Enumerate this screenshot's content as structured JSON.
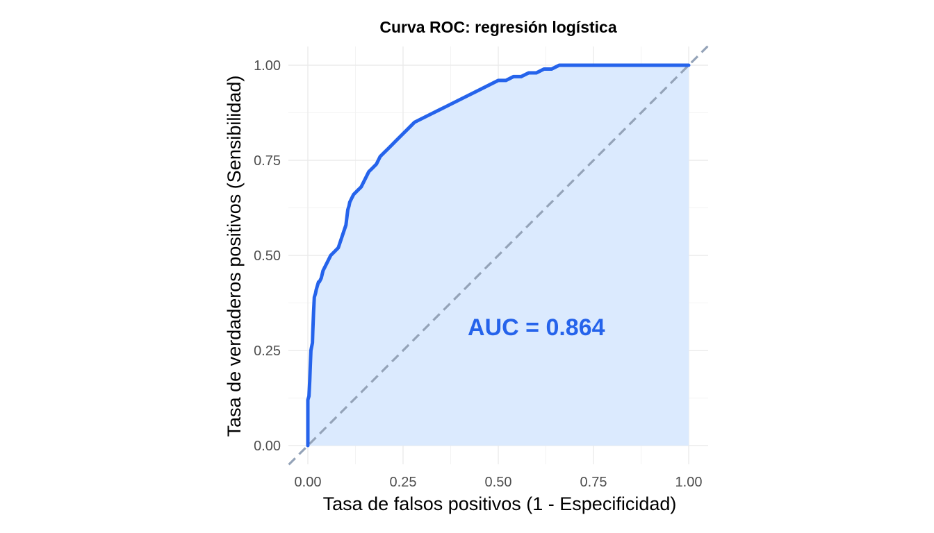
{
  "chart_data": {
    "type": "line",
    "title": "Curva ROC: regresión logística",
    "xlabel": "Tasa de falsos positivos (1 - Especificidad)",
    "ylabel": "Tasa de verdaderos positivos (Sensibilidad)",
    "xlim": [
      0,
      1
    ],
    "ylim": [
      0,
      1
    ],
    "x_ticks": [
      "0.00",
      "0.25",
      "0.50",
      "0.75",
      "1.00"
    ],
    "y_ticks": [
      "0.00",
      "0.25",
      "0.50",
      "0.75",
      "1.00"
    ],
    "grid": true,
    "legend": "none",
    "series": [
      {
        "x": [
          0.0,
          0.0,
          0.003,
          0.005,
          0.006,
          0.008,
          0.01,
          0.012,
          0.013,
          0.015,
          0.017,
          0.02,
          0.022,
          0.025,
          0.028,
          0.03,
          0.035,
          0.04,
          0.05,
          0.06,
          0.07,
          0.08,
          0.09,
          0.1,
          0.105,
          0.108,
          0.11,
          0.115,
          0.12,
          0.13,
          0.14,
          0.15,
          0.16,
          0.17,
          0.18,
          0.19,
          0.2,
          0.21,
          0.22,
          0.23,
          0.24,
          0.25,
          0.26,
          0.27,
          0.28,
          0.3,
          0.32,
          0.34,
          0.36,
          0.38,
          0.4,
          0.42,
          0.44,
          0.46,
          0.48,
          0.5,
          0.52,
          0.54,
          0.56,
          0.58,
          0.6,
          0.62,
          0.64,
          0.66,
          0.7,
          0.8,
          0.9,
          1.0
        ],
        "y": [
          0.0,
          0.12,
          0.13,
          0.17,
          0.2,
          0.25,
          0.26,
          0.27,
          0.3,
          0.35,
          0.39,
          0.4,
          0.41,
          0.42,
          0.43,
          0.43,
          0.44,
          0.46,
          0.48,
          0.5,
          0.51,
          0.52,
          0.55,
          0.58,
          0.62,
          0.63,
          0.64,
          0.65,
          0.66,
          0.67,
          0.68,
          0.7,
          0.72,
          0.73,
          0.74,
          0.76,
          0.77,
          0.78,
          0.79,
          0.8,
          0.81,
          0.82,
          0.83,
          0.84,
          0.85,
          0.86,
          0.87,
          0.88,
          0.89,
          0.9,
          0.91,
          0.92,
          0.93,
          0.94,
          0.95,
          0.96,
          0.96,
          0.97,
          0.97,
          0.98,
          0.98,
          0.99,
          0.99,
          1.0,
          1.0,
          1.0,
          1.0,
          1.0
        ],
        "color": "#2563eb",
        "fill": "#dbeafe"
      }
    ],
    "reference_line": {
      "x": [
        0,
        1
      ],
      "y": [
        0,
        1
      ],
      "style": "dashed",
      "color": "#94a3b8"
    },
    "annotations": [
      {
        "text": "AUC = 0.864",
        "x": 0.6,
        "y": 0.29,
        "color": "#2563eb"
      }
    ]
  }
}
